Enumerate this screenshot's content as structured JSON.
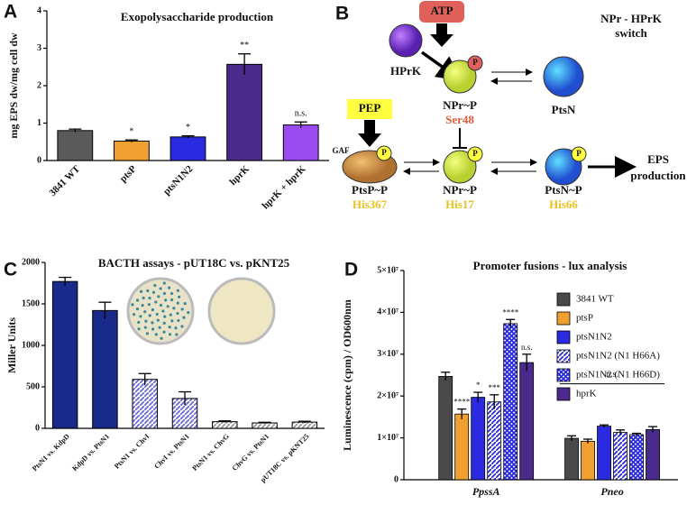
{
  "panel_labels": [
    "A",
    "B",
    "C",
    "D"
  ],
  "diagram": {
    "title": [
      "NPr - HPrK",
      "switch"
    ],
    "atp": "ATP",
    "hprk": "HPrK",
    "phospho": "P",
    "npr_ser": "NPr~P",
    "ser48": "Ser48",
    "ptsn": "PtsN",
    "pep": "PEP",
    "gaf": "GAF",
    "ptsp": "PtsP~P",
    "his367": "His367",
    "npr_his": "NPr~P",
    "his17": "His17",
    "ptsn_his": "PtsN~P",
    "his66": "His66",
    "output": [
      "EPS",
      "production"
    ]
  },
  "chart_data": [
    {
      "type": "bar",
      "title": "Exopolysaccharide production",
      "y_label": "mg EPS dw/mg cell dw",
      "categories": [
        "3841 WT",
        "ptsP",
        "ptsN1N2",
        "hprK",
        "hprK + hprK"
      ],
      "values": [
        0.8,
        0.52,
        0.63,
        2.57,
        0.95
      ],
      "errors": [
        0.04,
        0.03,
        0.03,
        0.28,
        0.08
      ],
      "annotations": [
        null,
        "*",
        "*",
        "**",
        "n.s."
      ],
      "colors": [
        "#5a5a5a",
        "#f0a030",
        "#2a2ae0",
        "#4a2a8a",
        "#9a4af0"
      ],
      "ylim": [
        0,
        4
      ],
      "yticks": [
        0,
        1,
        2,
        3,
        4
      ]
    },
    {
      "type": "bar",
      "title": "BACTH assays - pUT18C vs. pKNT25",
      "y_label": "Miller Units",
      "categories": [
        "PtsN1 vs. KdpD",
        "KdpD vs. PtsN1",
        "PtsN1 vs. ChvI",
        "ChvI vs. PtsN1",
        "PtsN1 vs. ChvG",
        "ChvG vs. PtsN1",
        "pUT18C vs. pKNT25"
      ],
      "values": [
        1770,
        1420,
        590,
        360,
        80,
        65,
        75
      ],
      "errors": [
        50,
        100,
        70,
        80,
        10,
        8,
        10
      ],
      "colors": [
        "#1a2a8a",
        "#1a2a8a",
        "#6a6ad8",
        "#6a6ad8",
        "#999999",
        "#999999",
        "#999999"
      ],
      "hatches": [
        null,
        null,
        "diagonal",
        "diagonal",
        "diagonal",
        "diagonal",
        "diagonal"
      ],
      "ylim": [
        0,
        2000
      ],
      "yticks": [
        0,
        500,
        1000,
        1500,
        2000
      ]
    },
    {
      "type": "grouped_bar",
      "title": "Promoter fusions - lux analysis",
      "y_label": "Luminescence (cpm) / OD600nm",
      "categories": [
        "PpssA",
        "Pneo"
      ],
      "series": [
        {
          "name": "3841 WT",
          "color": "#4a4a4a",
          "values": [
            24700000,
            9900000
          ],
          "errors": [
            1000000,
            600000
          ],
          "annotations": [
            null,
            null
          ]
        },
        {
          "name": "ptsP",
          "color": "#f0a030",
          "values": [
            15700000,
            9200000
          ],
          "errors": [
            1200000,
            500000
          ],
          "annotations": [
            "****",
            null
          ]
        },
        {
          "name": "ptsN1N2",
          "color": "#2a2ae0",
          "values": [
            19700000,
            12800000
          ],
          "errors": [
            1200000,
            300000
          ],
          "annotations": [
            "*",
            null
          ]
        },
        {
          "name": "ptsN1N2 (N1 H66A)",
          "color": "#2a2ae0",
          "hatch": "diagonal",
          "values": [
            18600000,
            11300000
          ],
          "errors": [
            1700000,
            600000
          ],
          "annotations": [
            "***",
            null
          ]
        },
        {
          "name": "ptsN1N2 (N1 H66D)",
          "color": "#2a2ae0",
          "hatch": "cross",
          "values": [
            37300000,
            10800000
          ],
          "errors": [
            1000000,
            300000
          ],
          "annotations": [
            "****",
            null
          ]
        },
        {
          "name": "hprK",
          "color": "#4a2a8a",
          "values": [
            28000000,
            12000000
          ],
          "errors": [
            2000000,
            700000
          ],
          "annotations": [
            "n.s.",
            null
          ]
        }
      ],
      "group_annotations": [
        null,
        "n.s."
      ],
      "ylim": [
        0,
        50000000
      ],
      "yticks": [
        0,
        {
          "value": 10000000,
          "label": "1×10⁷"
        },
        {
          "value": 20000000,
          "label": "2×10⁷"
        },
        {
          "value": 30000000,
          "label": "3×10⁷"
        },
        {
          "value": 40000000,
          "label": "4×10⁷"
        },
        {
          "value": 50000000,
          "label": "5×10⁷"
        }
      ]
    }
  ]
}
